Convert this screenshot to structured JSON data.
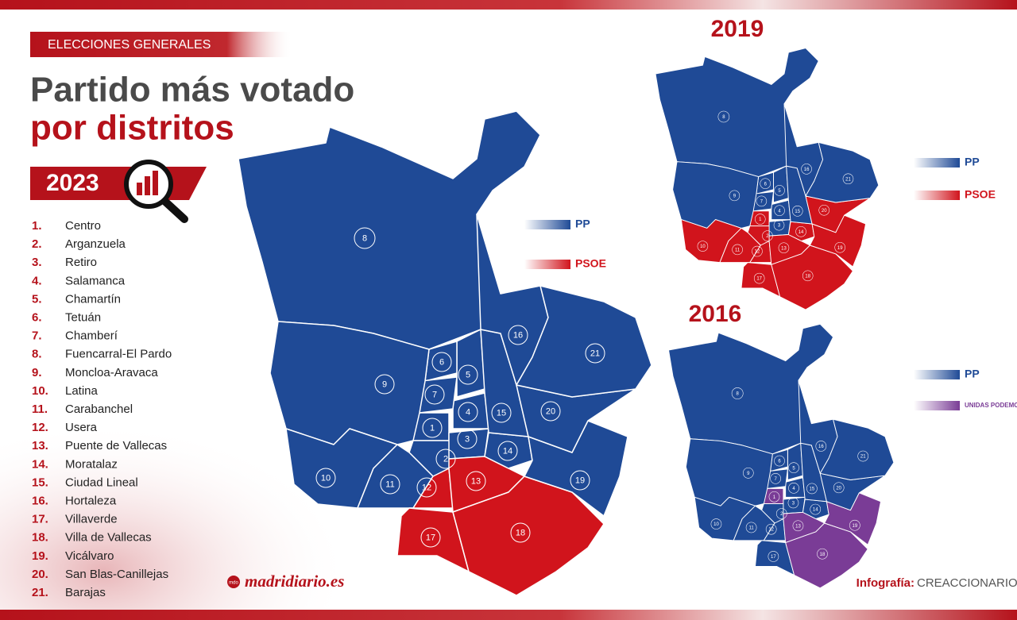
{
  "header": {
    "kicker": "ELECCIONES GENERALES",
    "title_line1": "Partido más votado",
    "title_line2": "por distritos",
    "year": "2023"
  },
  "parties": {
    "PP": {
      "label": "PP",
      "color": "#1f4a96"
    },
    "PSOE": {
      "label": "PSOE",
      "color": "#d1141c"
    },
    "UP": {
      "label": "UNIDAS PODEMOS",
      "color": "#7a3c96"
    }
  },
  "district_list": [
    {
      "number": "1.",
      "name": "Centro"
    },
    {
      "number": "2.",
      "name": "Arganzuela"
    },
    {
      "number": "3.",
      "name": "Retiro"
    },
    {
      "number": "4.",
      "name": "Salamanca"
    },
    {
      "number": "5.",
      "name": "Chamartín"
    },
    {
      "number": "6.",
      "name": "Tetuán"
    },
    {
      "number": "7.",
      "name": "Chamberí"
    },
    {
      "number": "8.",
      "name": "Fuencarral-El Pardo"
    },
    {
      "number": "9.",
      "name": "Moncloa-Aravaca"
    },
    {
      "number": "10.",
      "name": "Latina"
    },
    {
      "number": "11.",
      "name": "Carabanchel"
    },
    {
      "number": "12.",
      "name": "Usera"
    },
    {
      "number": "13.",
      "name": "Puente de Vallecas"
    },
    {
      "number": "14.",
      "name": "Moratalaz"
    },
    {
      "number": "15.",
      "name": "Ciudad Lineal"
    },
    {
      "number": "16.",
      "name": "Hortaleza"
    },
    {
      "number": "17.",
      "name": "Villaverde"
    },
    {
      "number": "18.",
      "name": "Villa de Vallecas"
    },
    {
      "number": "19.",
      "name": "Vicálvaro"
    },
    {
      "number": "20.",
      "name": "San Blas-Canillejas"
    },
    {
      "number": "21.",
      "name": "Barajas"
    }
  ],
  "maps": [
    {
      "legend": [
        "PP",
        "PSOE"
      ],
      "districts": [
        {
          "label": "1",
          "party": "PP"
        },
        {
          "label": "2",
          "party": "PP"
        },
        {
          "label": "3",
          "party": "PP"
        },
        {
          "label": "4",
          "party": "PP"
        },
        {
          "label": "5",
          "party": "PP"
        },
        {
          "label": "6",
          "party": "PP"
        },
        {
          "label": "7",
          "party": "PP"
        },
        {
          "label": "8",
          "party": "PP"
        },
        {
          "label": "9",
          "party": "PP"
        },
        {
          "label": "10",
          "party": "PP"
        },
        {
          "label": "11",
          "party": "PP"
        },
        {
          "label": "12",
          "party": "PSOE"
        },
        {
          "label": "13",
          "party": "PSOE"
        },
        {
          "label": "14",
          "party": "PP"
        },
        {
          "label": "15",
          "party": "PP"
        },
        {
          "label": "16",
          "party": "PP"
        },
        {
          "label": "17",
          "party": "PSOE"
        },
        {
          "label": "18",
          "party": "PSOE"
        },
        {
          "label": "19",
          "party": "PP"
        },
        {
          "label": "20",
          "party": "PP"
        },
        {
          "label": "21",
          "party": "PP"
        }
      ]
    },
    {
      "year": "2019",
      "legend": [
        "PP",
        "PSOE"
      ],
      "districts": [
        {
          "label": "1",
          "party": "PSOE"
        },
        {
          "label": "2",
          "party": "PSOE"
        },
        {
          "label": "3",
          "party": "PP"
        },
        {
          "label": "4",
          "party": "PP"
        },
        {
          "label": "5",
          "party": "PP"
        },
        {
          "label": "6",
          "party": "PP"
        },
        {
          "label": "7",
          "party": "PP"
        },
        {
          "label": "8",
          "party": "PP"
        },
        {
          "label": "9",
          "party": "PP"
        },
        {
          "label": "10",
          "party": "PSOE"
        },
        {
          "label": "11",
          "party": "PSOE"
        },
        {
          "label": "12",
          "party": "PSOE"
        },
        {
          "label": "13",
          "party": "PSOE"
        },
        {
          "label": "14",
          "party": "PSOE"
        },
        {
          "label": "15",
          "party": "PP"
        },
        {
          "label": "16",
          "party": "PP"
        },
        {
          "label": "17",
          "party": "PSOE"
        },
        {
          "label": "18",
          "party": "PSOE"
        },
        {
          "label": "19",
          "party": "PSOE"
        },
        {
          "label": "20",
          "party": "PSOE"
        },
        {
          "label": "21",
          "party": "PP"
        }
      ]
    },
    {
      "year": "2016",
      "legend": [
        "PP",
        "UP"
      ],
      "districts": [
        {
          "label": "1",
          "party": "UP"
        },
        {
          "label": "2",
          "party": "PP"
        },
        {
          "label": "3",
          "party": "PP"
        },
        {
          "label": "4",
          "party": "PP"
        },
        {
          "label": "5",
          "party": "PP"
        },
        {
          "label": "6",
          "party": "PP"
        },
        {
          "label": "7",
          "party": "PP"
        },
        {
          "label": "8",
          "party": "PP"
        },
        {
          "label": "9",
          "party": "PP"
        },
        {
          "label": "10",
          "party": "PP"
        },
        {
          "label": "11",
          "party": "PP"
        },
        {
          "label": "12",
          "party": "PP"
        },
        {
          "label": "13",
          "party": "UP"
        },
        {
          "label": "14",
          "party": "PP"
        },
        {
          "label": "15",
          "party": "PP"
        },
        {
          "label": "16",
          "party": "PP"
        },
        {
          "label": "17",
          "party": "PP"
        },
        {
          "label": "18",
          "party": "UP"
        },
        {
          "label": "19",
          "party": "UP"
        },
        {
          "label": "20",
          "party": "PP"
        },
        {
          "label": "21",
          "party": "PP"
        }
      ]
    }
  ],
  "footer": {
    "logo_mark": "mdo",
    "site": "madridiario.es",
    "credit_label": "Infografía:",
    "credit": "CREACCIONARIO"
  }
}
